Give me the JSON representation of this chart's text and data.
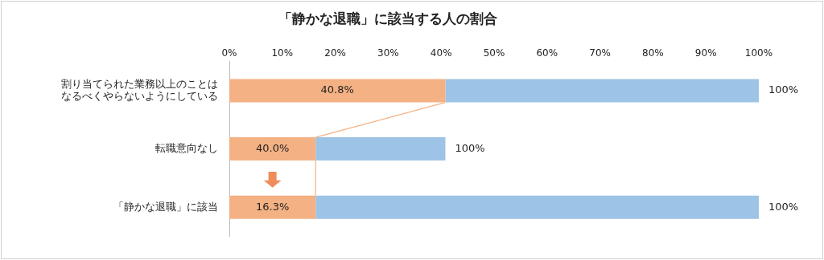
{
  "chart_data": {
    "type": "bar",
    "orientation": "horizontal",
    "stacked": true,
    "title": "「静かな退職」に該当する人の割合",
    "categories": [
      "割り当てられた業務以上のことはなるべくやらないようにしている",
      "転職意向なし",
      "「静かな退職」に該当"
    ],
    "series": [
      {
        "color": "#f4b183",
        "values": [
          40.8,
          16.3,
          16.3
        ],
        "value_labels": [
          "40.8%",
          null,
          "16.3%"
        ]
      },
      {
        "color": "#9dc3e6",
        "values": [
          59.2,
          24.5,
          83.7
        ]
      }
    ],
    "annotations": [
      {
        "text": "40.0%",
        "x": 16.3,
        "y": "転職意向なし"
      },
      {
        "text": "100%",
        "x": 100,
        "y": "割り当てられた業務以上のことはなるべくやらないようにしている"
      },
      {
        "text": "100%",
        "x": 40.8,
        "y": "転職意向なし"
      },
      {
        "text": "100%",
        "x": 100,
        "y": "「静かな退職」に該当"
      }
    ],
    "xlim": [
      0,
      100
    ],
    "xticks": [
      {
        "value": 0,
        "label": "0%"
      },
      {
        "value": 10,
        "label": "10%"
      },
      {
        "value": 20,
        "label": "20%"
      },
      {
        "value": 30,
        "label": "30%"
      },
      {
        "value": 40,
        "label": "40%"
      },
      {
        "value": 50,
        "label": "50%"
      },
      {
        "value": 60,
        "label": "60%"
      },
      {
        "value": 70,
        "label": "70%"
      },
      {
        "value": 80,
        "label": "80%"
      },
      {
        "value": 90,
        "label": "90%"
      },
      {
        "value": 100,
        "label": "100%"
      }
    ],
    "grid": false
  }
}
